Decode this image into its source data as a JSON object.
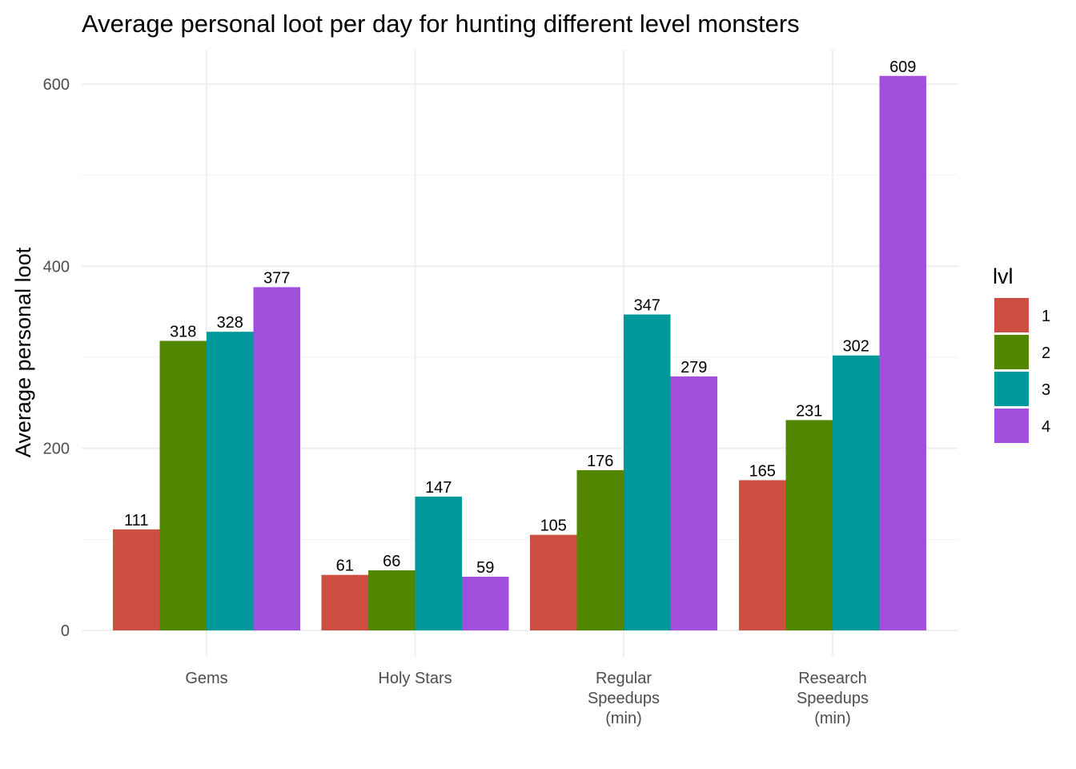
{
  "chart_data": {
    "type": "bar",
    "title": "Average personal loot per day for hunting different level monsters",
    "xlabel": "",
    "ylabel": "Average personal loot",
    "categories": [
      [
        "Gems"
      ],
      [
        "Holy Stars"
      ],
      [
        "Regular",
        "Speedups",
        "(min)"
      ],
      [
        "Research",
        "Speedups",
        "(min)"
      ]
    ],
    "series": [
      {
        "name": "1",
        "color": "#CC4F42",
        "values": [
          111,
          61,
          105,
          165
        ]
      },
      {
        "name": "2",
        "color": "#538600",
        "values": [
          318,
          66,
          176,
          231
        ]
      },
      {
        "name": "3",
        "color": "#00999B",
        "values": [
          328,
          147,
          347,
          302
        ]
      },
      {
        "name": "4",
        "color": "#A24FDE",
        "values": [
          377,
          59,
          279,
          609
        ]
      }
    ],
    "ylim": [
      0,
      640
    ],
    "yticks": [
      0,
      200,
      400,
      600
    ],
    "legend": {
      "title": "lvl",
      "position": "right"
    },
    "grid": true
  }
}
